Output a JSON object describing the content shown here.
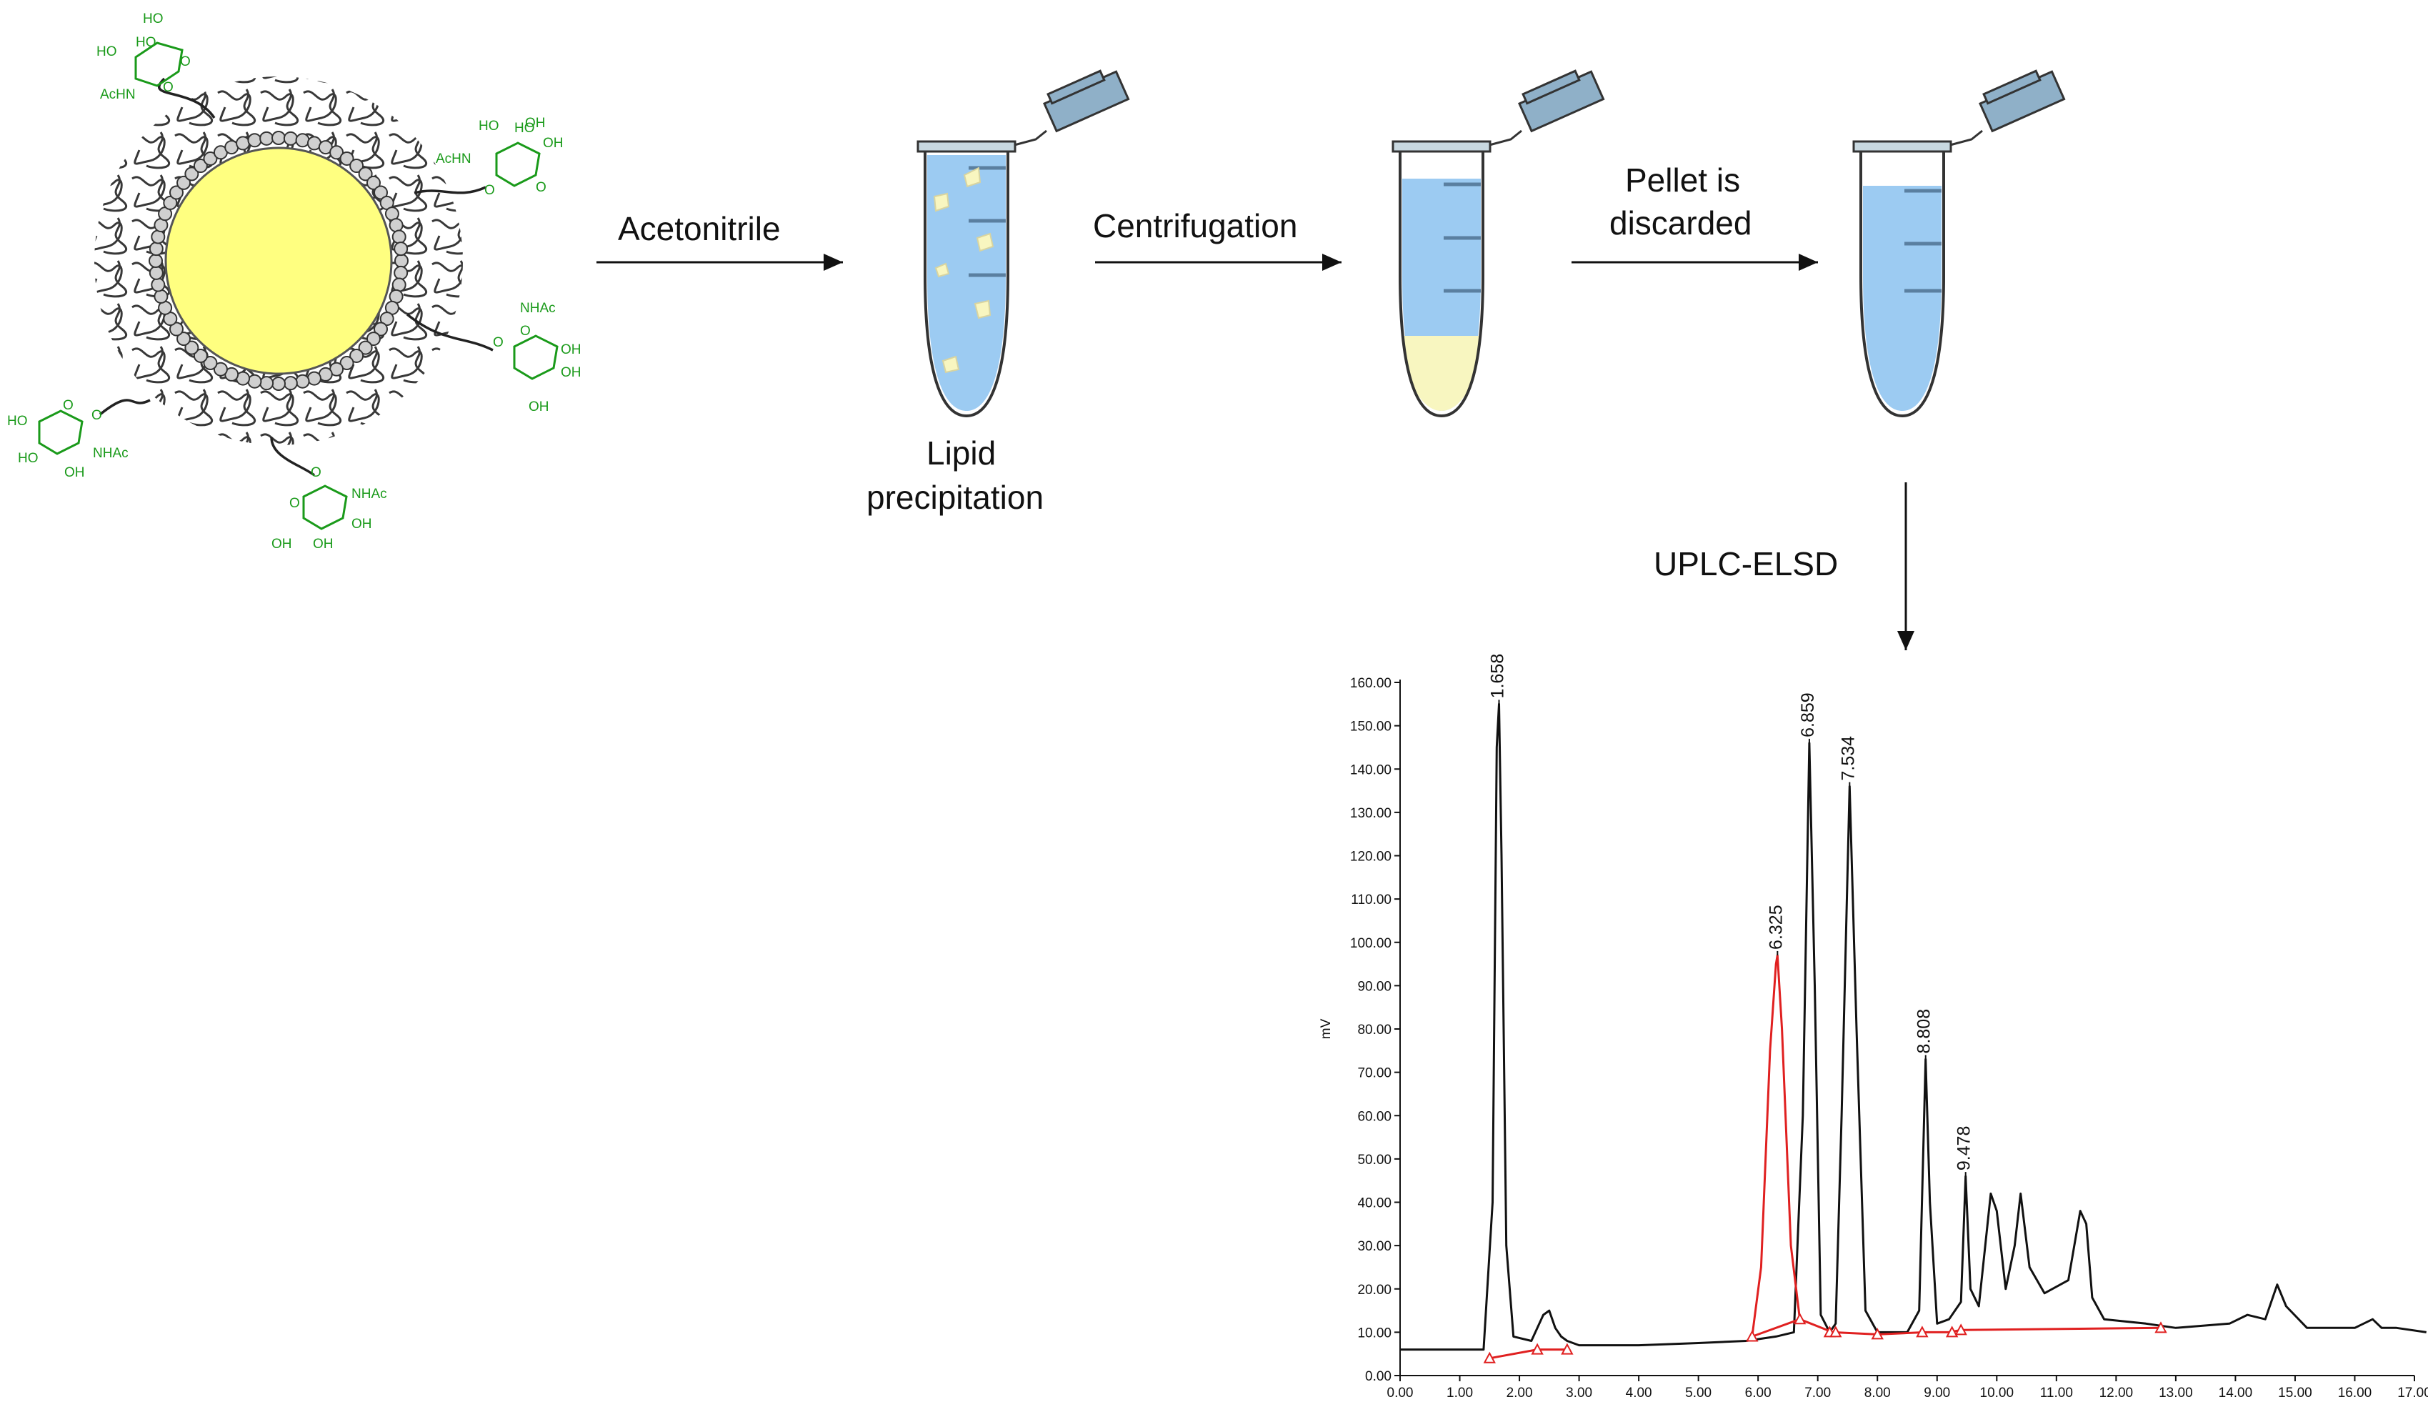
{
  "steps": {
    "acetonitrile": "Acetonitrile",
    "centrifugation": "Centrifugation",
    "pellet_line1": "Pellet is",
    "pellet_line2": "discarded",
    "lipid_line1": "Lipid",
    "lipid_line2": "precipitation",
    "uplc": "UPLC-ELSD"
  },
  "sugar_labels": {
    "ho": "HO",
    "oh": "OH",
    "achn": "AcHN",
    "nhac": "NHAc",
    "o": "O"
  },
  "colors": {
    "lipid_core": "#ffff80",
    "sugar_green": "#1a9a1a",
    "solution_blue": "#9ccbf2",
    "tube_cap": "#8fb0c8",
    "pellet_yellow": "#f8f6c0",
    "trace_black": "#111111",
    "trace_red": "#e02020"
  },
  "chart_data": {
    "type": "line",
    "title": "",
    "xlabel": "",
    "ylabel": "mV",
    "xlim": [
      0,
      17.0
    ],
    "ylim": [
      0,
      160
    ],
    "x_ticks": [
      "0.00",
      "1.00",
      "2.00",
      "3.00",
      "4.00",
      "5.00",
      "6.00",
      "7.00",
      "8.00",
      "9.00",
      "10.00",
      "11.00",
      "12.00",
      "13.00",
      "14.00",
      "15.00",
      "16.00",
      "17.00"
    ],
    "y_ticks": [
      "0.00",
      "10.00",
      "20.00",
      "30.00",
      "40.00",
      "50.00",
      "60.00",
      "70.00",
      "80.00",
      "90.00",
      "100.00",
      "110.00",
      "120.00",
      "130.00",
      "140.00",
      "150.00",
      "160.00"
    ],
    "peak_labels": [
      {
        "label": "1.658",
        "x": 1.658,
        "y": 155
      },
      {
        "label": "6.325",
        "x": 6.325,
        "y": 97
      },
      {
        "label": "6.859",
        "x": 6.859,
        "y": 146
      },
      {
        "label": "7.534",
        "x": 7.534,
        "y": 136
      },
      {
        "label": "8.808",
        "x": 8.808,
        "y": 73
      },
      {
        "label": "9.478",
        "x": 9.478,
        "y": 46
      }
    ],
    "series": [
      {
        "color": "#111111",
        "x": [
          0.0,
          1.4,
          1.55,
          1.62,
          1.658,
          1.7,
          1.78,
          1.9,
          2.2,
          2.4,
          2.5,
          2.6,
          2.7,
          2.8,
          3.0,
          4.0,
          5.0,
          5.8,
          6.3,
          6.6,
          6.75,
          6.859,
          6.95,
          7.05,
          7.2,
          7.3,
          7.4,
          7.534,
          7.65,
          7.8,
          8.0,
          8.5,
          8.7,
          8.808,
          8.88,
          9.0,
          9.2,
          9.4,
          9.478,
          9.56,
          9.7,
          9.9,
          10.0,
          10.15,
          10.3,
          10.4,
          10.55,
          10.8,
          11.2,
          11.4,
          11.5,
          11.6,
          11.8,
          12.5,
          13.0,
          13.9,
          14.2,
          14.5,
          14.7,
          14.85,
          15.2,
          16.0,
          16.3,
          16.45,
          16.7,
          17.2
        ],
        "y": [
          6,
          6,
          40,
          145,
          155,
          120,
          30,
          9,
          8,
          14,
          15,
          11,
          9,
          8,
          7,
          7,
          7.5,
          8,
          9,
          10,
          60,
          146,
          90,
          14,
          10,
          12,
          60,
          136,
          80,
          15,
          10,
          10,
          15,
          73,
          40,
          12,
          13,
          17,
          46,
          20,
          16,
          42,
          38,
          20,
          30,
          42,
          25,
          19,
          22,
          38,
          35,
          18,
          13,
          12,
          11,
          12,
          14,
          13,
          21,
          16,
          11,
          11,
          13,
          11,
          11,
          10
        ]
      },
      {
        "color": "#e02020",
        "x": [
          5.9,
          6.05,
          6.2,
          6.3,
          6.325,
          6.4,
          6.55,
          6.7
        ],
        "y": [
          9,
          25,
          75,
          95,
          97,
          80,
          30,
          13
        ]
      },
      {
        "color": "#e02020",
        "x": [
          1.5,
          2.3,
          2.8
        ],
        "y": [
          4,
          6,
          6
        ]
      },
      {
        "color": "#e02020",
        "x": [
          5.9,
          6.7,
          7.25,
          8.0,
          8.8,
          9.2,
          9.4,
          12.75
        ],
        "y": [
          9,
          13,
          10,
          9.5,
          10,
          10,
          10.5,
          11
        ]
      }
    ],
    "markers_red": [
      [
        1.5,
        4
      ],
      [
        2.3,
        6
      ],
      [
        2.8,
        6
      ],
      [
        5.9,
        9
      ],
      [
        6.7,
        13
      ],
      [
        7.2,
        10
      ],
      [
        7.3,
        10
      ],
      [
        8.0,
        9.5
      ],
      [
        8.75,
        10
      ],
      [
        9.25,
        10
      ],
      [
        9.4,
        10.5
      ],
      [
        12.75,
        11
      ]
    ]
  }
}
